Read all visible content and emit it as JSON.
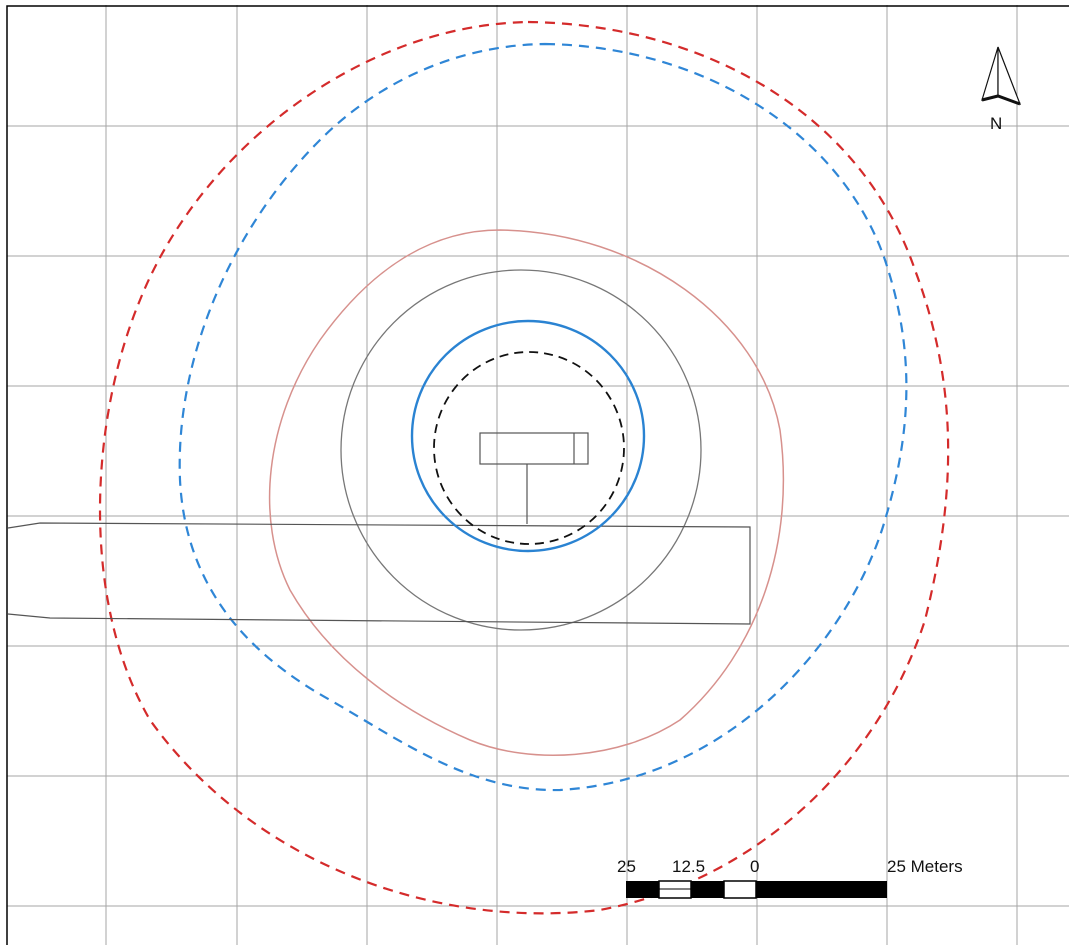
{
  "map": {
    "colors": {
      "background": "#ffffff",
      "frame": "#000000",
      "grid": "#a6a6a6",
      "outer_dashed_red": "#d42b2b",
      "outer_dashed_blue": "#2f86d6",
      "inner_dashed_black": "#111111",
      "circle_blue": "#2a83d2",
      "circle_gray": "#777777",
      "contour_pink": "#d7918d",
      "structure": "#555555"
    },
    "north_arrow": {
      "icon": "north-arrow-icon",
      "label": "N"
    },
    "scale_bar": {
      "labels": [
        "25",
        "12.5",
        "0",
        "25 Meters"
      ]
    }
  }
}
